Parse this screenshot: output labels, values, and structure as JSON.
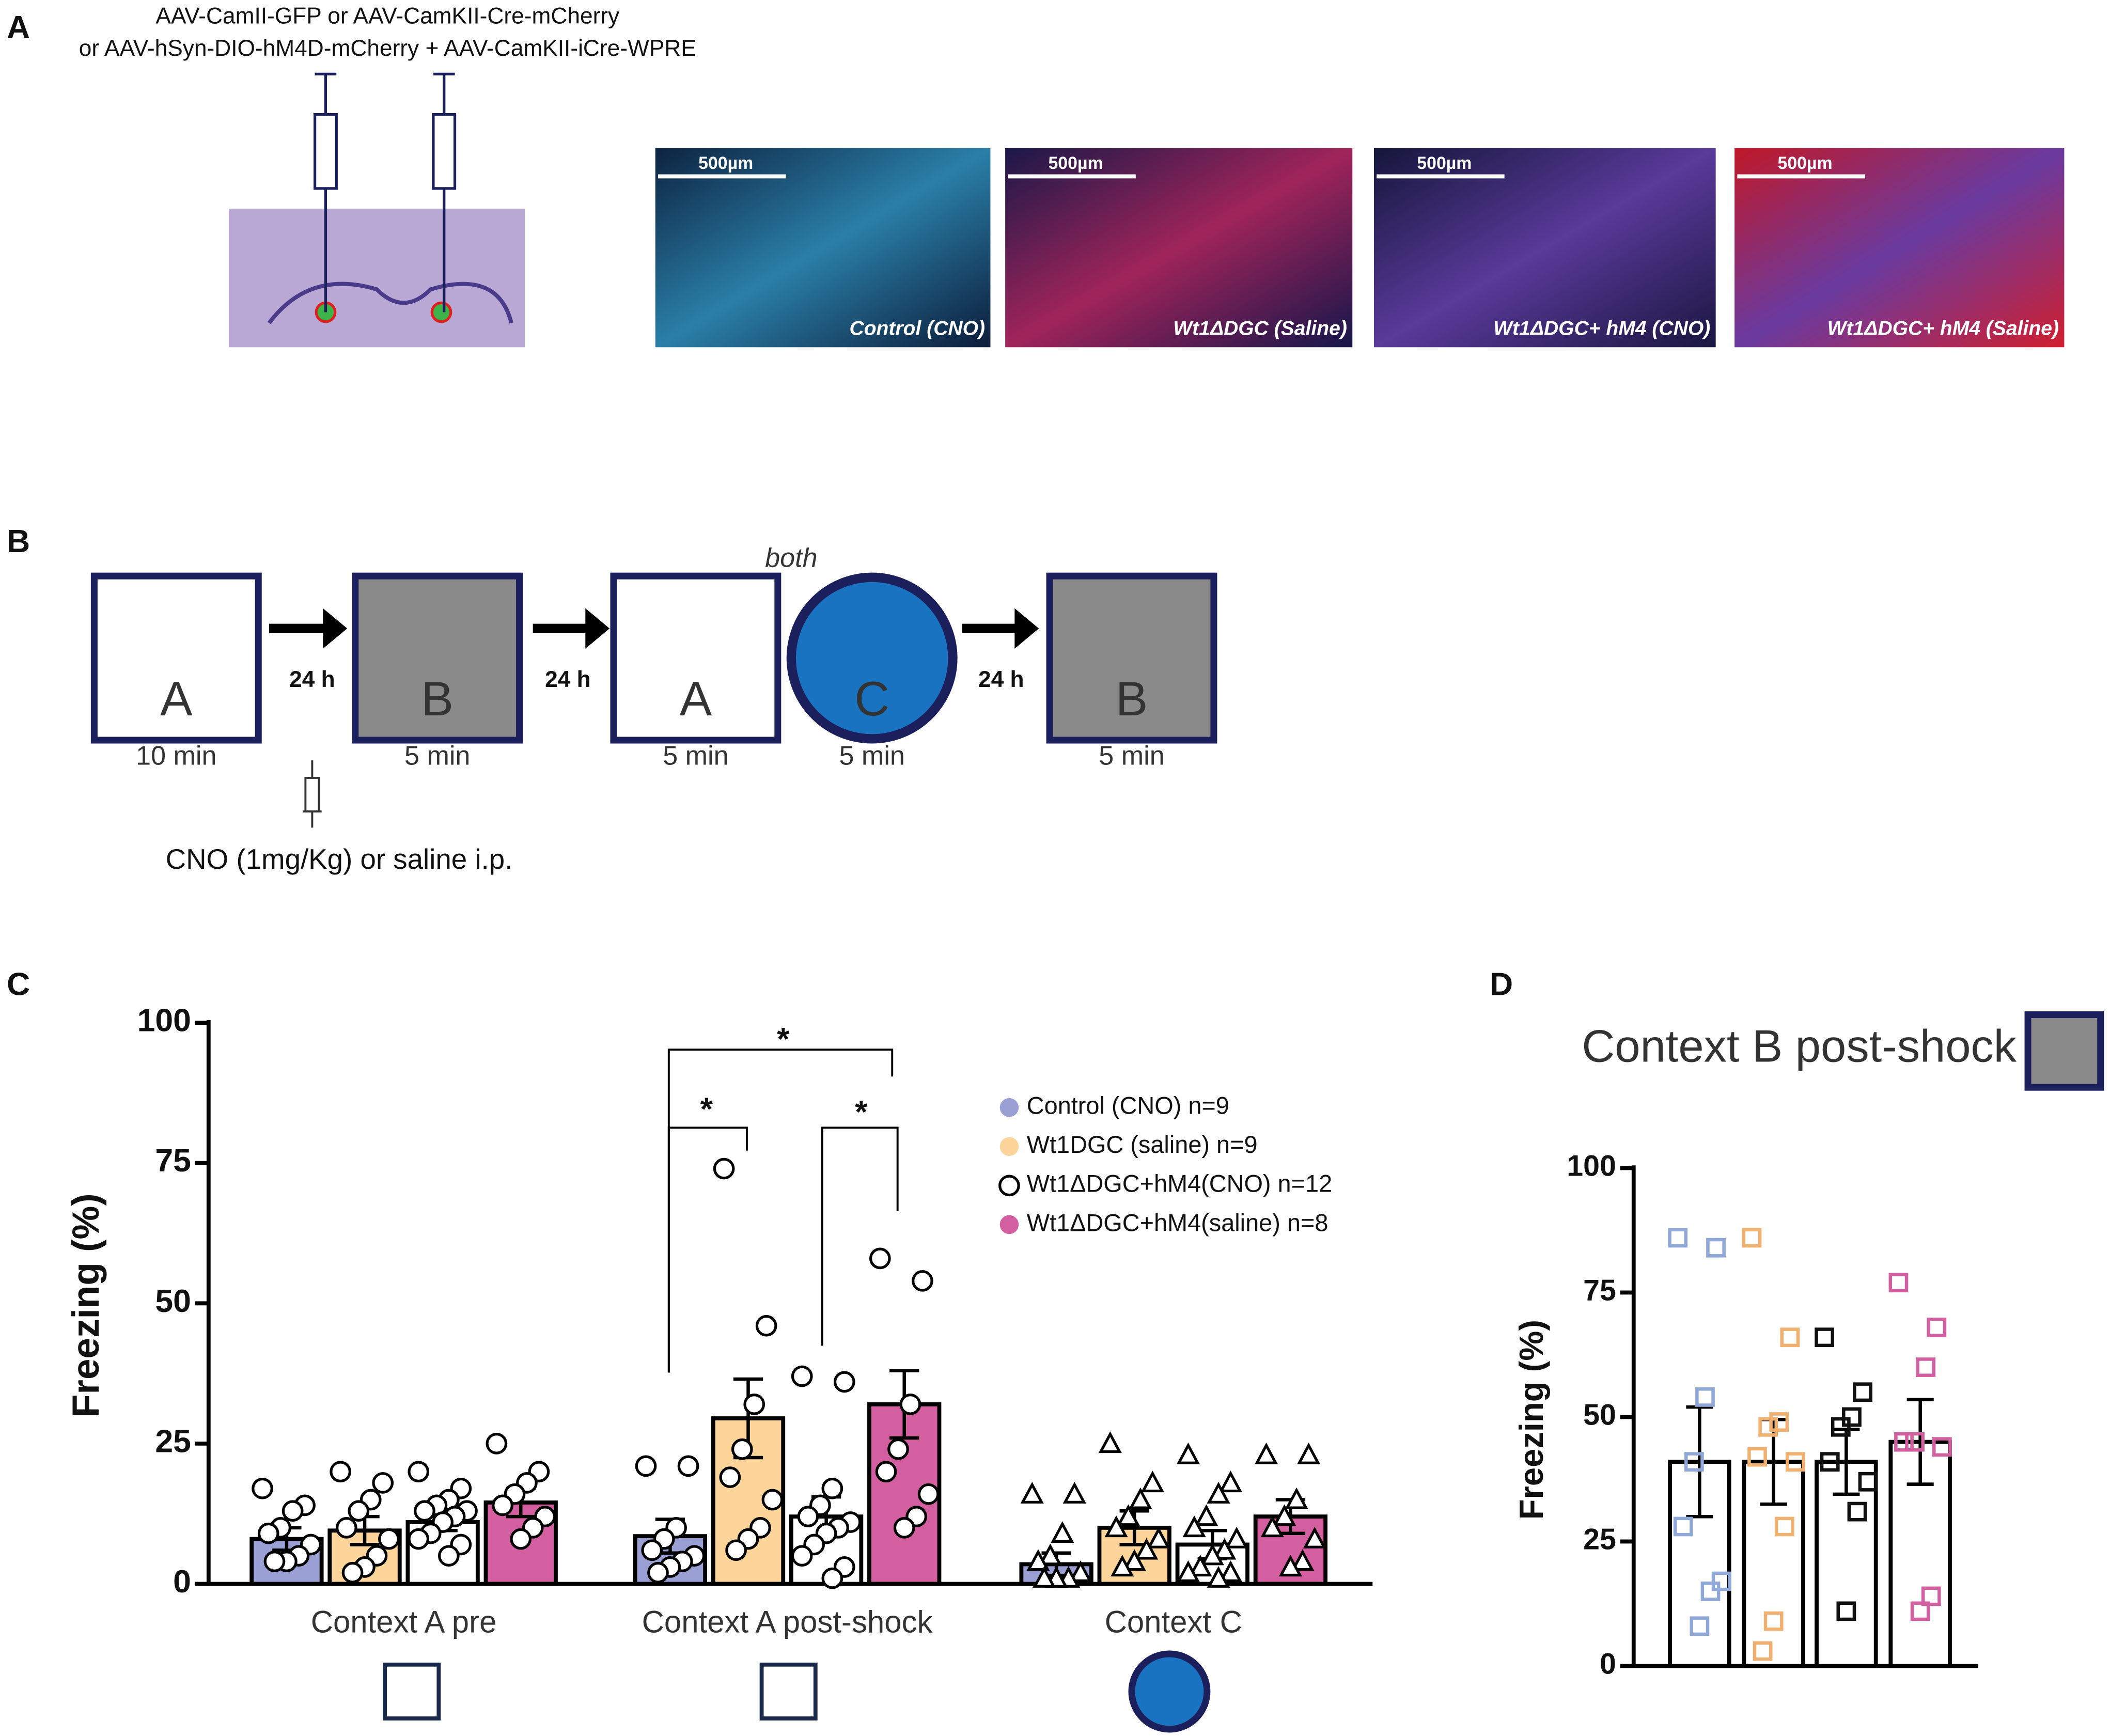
{
  "panel_a": {
    "label": "A",
    "virus_lines": [
      "AAV-CamII-GFP or AAV-CamKII-Cre-mCherry",
      "or AAV-hSyn-DIO-hM4D-mCherry + AAV-CamKII-iCre-WPRE"
    ],
    "images": [
      {
        "scale": "500µm",
        "caption": "Control (CNO)"
      },
      {
        "scale": "500µm",
        "caption": "Wt1ΔDGC (Saline)"
      },
      {
        "scale": "500µm",
        "caption": "Wt1ΔDGC+ hM4 (CNO)"
      },
      {
        "scale": "500µm",
        "caption": "Wt1ΔDGC+ hM4 (Saline)"
      }
    ]
  },
  "panel_b": {
    "label": "B",
    "steps": [
      {
        "context": "A",
        "duration": "10 min"
      },
      {
        "context": "B",
        "duration": "5 min"
      },
      {
        "context": "A",
        "duration": "5 min"
      },
      {
        "context": "C",
        "duration": "5 min"
      },
      {
        "context": "B",
        "duration": "5 min"
      }
    ],
    "intervals": [
      "24 h",
      "24 h",
      "24 h"
    ],
    "note": "both",
    "injection": "CNO (1mg/Kg) or saline i.p."
  },
  "chart_data": [
    {
      "panel": "C",
      "type": "bar",
      "ylabel": "Freezing (%)",
      "categories": [
        "Context A pre",
        "Context A post-shock",
        "Context C"
      ],
      "markers": [
        "circle",
        "circle",
        "triangle"
      ],
      "ylim": [
        0,
        100
      ],
      "yticks": [
        0,
        25,
        50,
        75,
        100
      ],
      "annotations": [
        "*",
        "*",
        "*"
      ],
      "series": [
        {
          "name": "Control (CNO)  n=9",
          "color": "#9a9fd4",
          "values": [
            8,
            8.5,
            3.5
          ],
          "errors": [
            2,
            3,
            2
          ],
          "points": [
            [
              17,
              14,
              13,
              10,
              9,
              7,
              5,
              4,
              4
            ],
            [
              21,
              21,
              10,
              8,
              6,
              5,
              4,
              3,
              2
            ],
            [
              16,
              16,
              9,
              5,
              4,
              2,
              1,
              1,
              1
            ]
          ]
        },
        {
          "name": "Wt1DGC (saline) n=9",
          "color": "#fdd59a",
          "values": [
            9.5,
            29.5,
            10
          ],
          "errors": [
            2.5,
            7,
            3
          ],
          "points": [
            [
              20,
              18,
              15,
              13,
              10,
              8,
              5,
              3,
              2
            ],
            [
              74,
              46,
              32,
              24,
              19,
              15,
              10,
              8,
              6
            ],
            [
              25,
              18,
              15,
              12,
              10,
              8,
              6,
              4,
              3
            ]
          ]
        },
        {
          "name": "Wt1ΔDGC+hM4(CNO) n=12",
          "color": "#ffffff",
          "values": [
            11,
            12,
            7
          ],
          "errors": [
            1.5,
            3.5,
            2.5
          ],
          "points": [
            [
              20,
              17,
              15,
              14,
              13,
              13,
              12,
              11,
              9,
              8,
              7,
              5
            ],
            [
              37,
              36,
              17,
              14,
              12,
              11,
              10,
              9,
              7,
              5,
              3,
              1
            ],
            [
              23,
              18,
              16,
              12,
              10,
              8,
              6,
              5,
              3,
              2,
              2,
              1
            ]
          ]
        },
        {
          "name": "Wt1ΔDGC+hM4(saline) n=8",
          "color": "#d35fa0",
          "values": [
            14.5,
            32,
            12
          ],
          "errors": [
            2.5,
            6,
            3
          ],
          "points": [
            [
              25,
              20,
              18,
              16,
              14,
              12,
              10,
              8
            ],
            [
              58,
              54,
              32,
              24,
              20,
              16,
              12,
              10
            ],
            [
              23,
              23,
              15,
              12,
              10,
              8,
              4,
              3
            ]
          ]
        }
      ]
    },
    {
      "panel": "D",
      "type": "bar",
      "title": "Context B post-shock",
      "ylabel": "Freezing (%)",
      "ylim": [
        0,
        100
      ],
      "yticks": [
        0,
        25,
        50,
        75,
        100
      ],
      "color": "#ffffff",
      "values": [
        41,
        41,
        41,
        45
      ],
      "errors": [
        11,
        8.5,
        6.5,
        8.5
      ],
      "point_colors": [
        "#8fa8d8",
        "#f0b070",
        "#111111",
        "#d060a0"
      ],
      "points": [
        [
          86,
          84,
          54,
          41,
          28,
          17,
          15,
          8
        ],
        [
          86,
          66,
          49,
          48,
          42,
          41,
          28,
          9,
          3
        ],
        [
          66,
          55,
          50,
          48,
          41,
          37,
          31,
          11
        ],
        [
          77,
          68,
          60,
          45,
          45,
          44,
          14,
          11
        ]
      ]
    }
  ]
}
